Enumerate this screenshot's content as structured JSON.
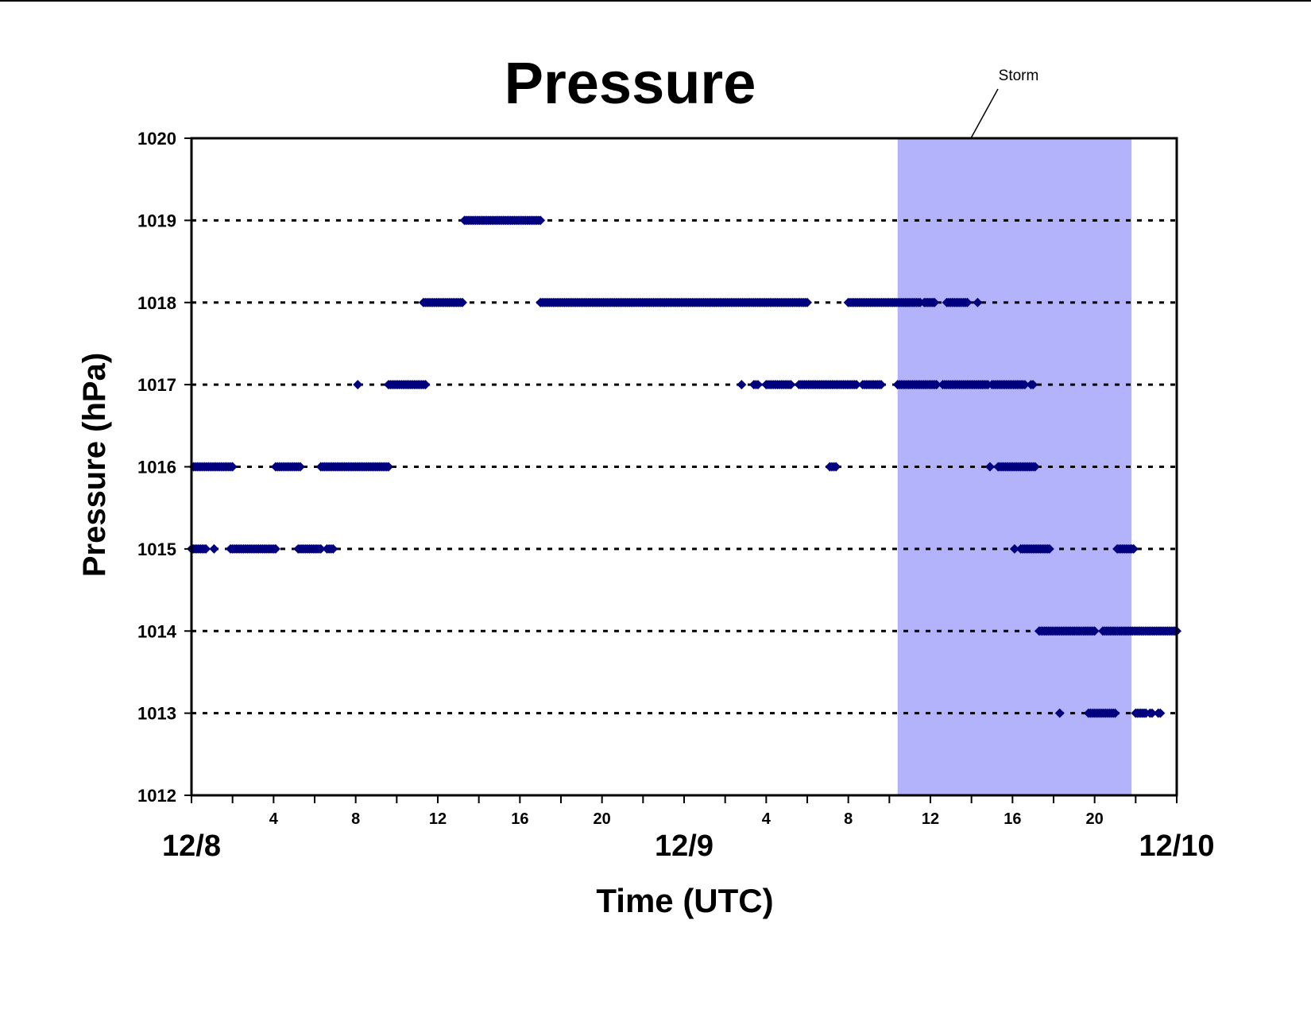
{
  "chart_data": {
    "type": "scatter",
    "title": "Pressure",
    "xlabel": "Time (UTC)",
    "ylabel": "Pressure (hPa)",
    "ylim": [
      1012,
      1020
    ],
    "yticks": [
      "1012",
      "1013",
      "1014",
      "1015",
      "1016",
      "1017",
      "1018",
      "1019",
      "1020"
    ],
    "xlim_hours": [
      0,
      48
    ],
    "date_labels": [
      {
        "text": "12/8",
        "hour": 0
      },
      {
        "text": "12/9",
        "hour": 24
      },
      {
        "text": "12/10",
        "hour": 48
      }
    ],
    "hour_tick_labels": [
      {
        "text": "4",
        "hour": 4
      },
      {
        "text": "8",
        "hour": 8
      },
      {
        "text": "12",
        "hour": 12
      },
      {
        "text": "16",
        "hour": 16
      },
      {
        "text": "20",
        "hour": 20
      },
      {
        "text": "4",
        "hour": 28
      },
      {
        "text": "8",
        "hour": 32
      },
      {
        "text": "12",
        "hour": 36
      },
      {
        "text": "16",
        "hour": 40
      },
      {
        "text": "20",
        "hour": 44
      }
    ],
    "gridlines": "horizontal dashed",
    "storm": {
      "label": "Storm",
      "start_hour": 34.4,
      "end_hour": 45.8,
      "color": "#b3b3fb"
    },
    "marker_color": "#00007f",
    "series": [
      {
        "pressure": 1019,
        "segments": [
          [
            13.3,
            17.0
          ]
        ]
      },
      {
        "pressure": 1018,
        "segments": [
          [
            11.3,
            13.2
          ],
          [
            17.0,
            30.0
          ],
          [
            32.0,
            35.5
          ],
          [
            35.7,
            36.2
          ],
          [
            36.8,
            37.8
          ],
          [
            38.3,
            38.3
          ]
        ]
      },
      {
        "pressure": 1017,
        "segments": [
          [
            8.1,
            8.1
          ],
          [
            9.6,
            11.4
          ],
          [
            26.8,
            26.8
          ],
          [
            27.4,
            27.6
          ],
          [
            28.0,
            29.2
          ],
          [
            29.6,
            32.4
          ],
          [
            32.7,
            33.6
          ],
          [
            34.4,
            36.3
          ],
          [
            36.6,
            38.8
          ],
          [
            39.0,
            40.5
          ],
          [
            40.6,
            40.6
          ],
          [
            40.9,
            41.0
          ]
        ]
      },
      {
        "pressure": 1016,
        "segments": [
          [
            0.1,
            2.0
          ],
          [
            4.1,
            5.3
          ],
          [
            6.3,
            9.6
          ],
          [
            31.1,
            31.4
          ],
          [
            38.9,
            38.9
          ],
          [
            39.3,
            41.1
          ]
        ]
      },
      {
        "pressure": 1015,
        "segments": [
          [
            0.0,
            0.7
          ],
          [
            1.1,
            1.1
          ],
          [
            1.9,
            4.1
          ],
          [
            5.2,
            6.3
          ],
          [
            6.6,
            6.9
          ],
          [
            40.1,
            40.1
          ],
          [
            40.4,
            41.8
          ],
          [
            45.1,
            45.9
          ]
        ]
      },
      {
        "pressure": 1014,
        "segments": [
          [
            41.3,
            44.0
          ],
          [
            44.4,
            48.0
          ]
        ]
      },
      {
        "pressure": 1013,
        "segments": [
          [
            42.3,
            42.3
          ],
          [
            43.7,
            45.0
          ],
          [
            46.0,
            46.5
          ],
          [
            46.7,
            46.8
          ],
          [
            47.1,
            47.2
          ]
        ]
      }
    ]
  }
}
